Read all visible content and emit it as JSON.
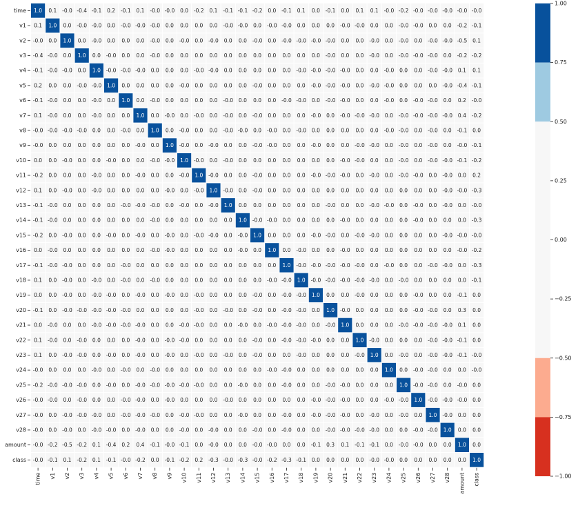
{
  "chart_data": {
    "type": "heatmap",
    "variables": [
      "time",
      "v1",
      "v2",
      "v3",
      "v4",
      "v5",
      "v6",
      "v7",
      "v8",
      "v9",
      "v10",
      "v11",
      "v12",
      "v13",
      "v14",
      "v15",
      "v16",
      "v17",
      "v18",
      "v19",
      "v20",
      "v21",
      "v22",
      "v23",
      "v24",
      "v25",
      "v26",
      "v27",
      "v28",
      "amount",
      "class"
    ],
    "matrix": [
      [
        "1.0",
        "0.1",
        "-0.0",
        "-0.4",
        "-0.1",
        "0.2",
        "-0.1",
        "0.1",
        "-0.0",
        "-0.0",
        "0.0",
        "-0.2",
        "0.1",
        "-0.1",
        "-0.1",
        "-0.2",
        "0.0",
        "-0.1",
        "0.1",
        "0.0",
        "-0.1",
        "0.0",
        "0.1",
        "0.1",
        "-0.0",
        "-0.2",
        "-0.0",
        "-0.0",
        "-0.0",
        "-0.0",
        "-0.0"
      ],
      [
        "0.1",
        "1.0",
        "0.0",
        "-0.0",
        "-0.0",
        "0.0",
        "-0.0",
        "-0.0",
        "-0.0",
        "0.0",
        "0.0",
        "0.0",
        "0.0",
        "-0.0",
        "-0.0",
        "0.0",
        "-0.0",
        "-0.0",
        "0.0",
        "0.0",
        "0.0",
        "-0.0",
        "-0.0",
        "0.0",
        "0.0",
        "-0.0",
        "-0.0",
        "0.0",
        "0.0",
        "-0.2",
        "-0.1"
      ],
      [
        "-0.0",
        "0.0",
        "1.0",
        "0.0",
        "-0.0",
        "0.0",
        "0.0",
        "0.0",
        "-0.0",
        "0.0",
        "-0.0",
        "0.0",
        "-0.0",
        "0.0",
        "0.0",
        "-0.0",
        "0.0",
        "-0.0",
        "-0.0",
        "-0.0",
        "-0.0",
        "0.0",
        "0.0",
        "-0.0",
        "0.0",
        "-0.0",
        "0.0",
        "-0.0",
        "-0.0",
        "-0.5",
        "0.1"
      ],
      [
        "-0.4",
        "-0.0",
        "0.0",
        "1.0",
        "0.0",
        "-0.0",
        "0.0",
        "0.0",
        "-0.0",
        "0.0",
        "0.0",
        "0.0",
        "0.0",
        "0.0",
        "0.0",
        "0.0",
        "0.0",
        "0.0",
        "0.0",
        "0.0",
        "-0.0",
        "0.0",
        "0.0",
        "-0.0",
        "0.0",
        "-0.0",
        "-0.0",
        "-0.0",
        "0.0",
        "-0.2",
        "-0.2"
      ],
      [
        "-0.1",
        "-0.0",
        "-0.0",
        "0.0",
        "1.0",
        "-0.0",
        "-0.0",
        "-0.0",
        "0.0",
        "0.0",
        "0.0",
        "-0.0",
        "-0.0",
        "0.0",
        "0.0",
        "0.0",
        "0.0",
        "0.0",
        "-0.0",
        "-0.0",
        "-0.0",
        "-0.0",
        "0.0",
        "0.0",
        "-0.0",
        "0.0",
        "0.0",
        "-0.0",
        "-0.0",
        "0.1",
        "0.1"
      ],
      [
        "0.2",
        "0.0",
        "0.0",
        "-0.0",
        "-0.0",
        "1.0",
        "0.0",
        "0.0",
        "0.0",
        "0.0",
        "-0.0",
        "0.0",
        "0.0",
        "0.0",
        "0.0",
        "-0.0",
        "0.0",
        "0.0",
        "0.0",
        "-0.0",
        "-0.0",
        "-0.0",
        "0.0",
        "-0.0",
        "-0.0",
        "0.0",
        "0.0",
        "0.0",
        "-0.0",
        "-0.4",
        "-0.1"
      ],
      [
        "-0.1",
        "-0.0",
        "0.0",
        "0.0",
        "-0.0",
        "0.0",
        "1.0",
        "0.0",
        "-0.0",
        "0.0",
        "0.0",
        "0.0",
        "0.0",
        "-0.0",
        "0.0",
        "0.0",
        "0.0",
        "-0.0",
        "-0.0",
        "0.0",
        "-0.0",
        "-0.0",
        "0.0",
        "0.0",
        "-0.0",
        "0.0",
        "-0.0",
        "-0.0",
        "0.0",
        "0.2",
        "-0.0"
      ],
      [
        "0.1",
        "-0.0",
        "0.0",
        "0.0",
        "-0.0",
        "0.0",
        "0.0",
        "1.0",
        "0.0",
        "-0.0",
        "0.0",
        "-0.0",
        "0.0",
        "-0.0",
        "0.0",
        "-0.0",
        "0.0",
        "0.0",
        "0.0",
        "-0.0",
        "0.0",
        "-0.0",
        "-0.0",
        "-0.0",
        "0.0",
        "-0.0",
        "-0.0",
        "-0.0",
        "-0.0",
        "0.4",
        "-0.2"
      ],
      [
        "-0.0",
        "-0.0",
        "-0.0",
        "-0.0",
        "0.0",
        "0.0",
        "-0.0",
        "0.0",
        "1.0",
        "0.0",
        "-0.0",
        "0.0",
        "0.0",
        "-0.0",
        "-0.0",
        "0.0",
        "-0.0",
        "0.0",
        "-0.0",
        "0.0",
        "0.0",
        "0.0",
        "0.0",
        "0.0",
        "-0.0",
        "-0.0",
        "0.0",
        "-0.0",
        "0.0",
        "-0.1",
        "0.0"
      ],
      [
        "-0.0",
        "0.0",
        "0.0",
        "0.0",
        "0.0",
        "0.0",
        "0.0",
        "-0.0",
        "0.0",
        "1.0",
        "-0.0",
        "0.0",
        "-0.0",
        "0.0",
        "0.0",
        "-0.0",
        "-0.0",
        "0.0",
        "0.0",
        "-0.0",
        "0.0",
        "0.0",
        "-0.0",
        "-0.0",
        "0.0",
        "-0.0",
        "0.0",
        "-0.0",
        "0.0",
        "-0.0",
        "-0.1"
      ],
      [
        "0.0",
        "0.0",
        "-0.0",
        "0.0",
        "0.0",
        "-0.0",
        "0.0",
        "0.0",
        "-0.0",
        "-0.0",
        "1.0",
        "-0.0",
        "0.0",
        "-0.0",
        "0.0",
        "0.0",
        "0.0",
        "0.0",
        "0.0",
        "0.0",
        "0.0",
        "-0.0",
        "-0.0",
        "0.0",
        "0.0",
        "-0.0",
        "0.0",
        "-0.0",
        "-0.0",
        "-0.1",
        "-0.2"
      ],
      [
        "-0.2",
        "0.0",
        "0.0",
        "0.0",
        "-0.0",
        "0.0",
        "0.0",
        "-0.0",
        "0.0",
        "0.0",
        "-0.0",
        "1.0",
        "-0.0",
        "0.0",
        "0.0",
        "-0.0",
        "0.0",
        "0.0",
        "0.0",
        "-0.0",
        "-0.0",
        "-0.0",
        "0.0",
        "-0.0",
        "0.0",
        "-0.0",
        "-0.0",
        "0.0",
        "-0.0",
        "0.0",
        "0.2"
      ],
      [
        "0.1",
        "0.0",
        "-0.0",
        "0.0",
        "-0.0",
        "0.0",
        "0.0",
        "0.0",
        "0.0",
        "-0.0",
        "0.0",
        "-0.0",
        "1.0",
        "-0.0",
        "0.0",
        "-0.0",
        "0.0",
        "0.0",
        "0.0",
        "0.0",
        "0.0",
        "0.0",
        "0.0",
        "0.0",
        "0.0",
        "0.0",
        "0.0",
        "0.0",
        "-0.0",
        "-0.0",
        "-0.3"
      ],
      [
        "-0.1",
        "-0.0",
        "0.0",
        "0.0",
        "0.0",
        "0.0",
        "-0.0",
        "-0.0",
        "-0.0",
        "0.0",
        "-0.0",
        "0.0",
        "-0.0",
        "1.0",
        "0.0",
        "0.0",
        "0.0",
        "0.0",
        "0.0",
        "0.0",
        "-0.0",
        "0.0",
        "0.0",
        "-0.0",
        "-0.0",
        "0.0",
        "-0.0",
        "0.0",
        "-0.0",
        "0.0",
        "-0.0"
      ],
      [
        "-0.1",
        "-0.0",
        "0.0",
        "0.0",
        "0.0",
        "0.0",
        "0.0",
        "0.0",
        "-0.0",
        "0.0",
        "0.0",
        "0.0",
        "0.0",
        "0.0",
        "1.0",
        "-0.0",
        "-0.0",
        "0.0",
        "0.0",
        "0.0",
        "0.0",
        "-0.0",
        "0.0",
        "0.0",
        "0.0",
        "0.0",
        "-0.0",
        "0.0",
        "0.0",
        "0.0",
        "-0.3"
      ],
      [
        "-0.2",
        "0.0",
        "-0.0",
        "0.0",
        "0.0",
        "-0.0",
        "0.0",
        "-0.0",
        "0.0",
        "-0.0",
        "0.0",
        "-0.0",
        "-0.0",
        "0.0",
        "-0.0",
        "1.0",
        "0.0",
        "0.0",
        "0.0",
        "-0.0",
        "-0.0",
        "0.0",
        "-0.0",
        "-0.0",
        "0.0",
        "0.0",
        "0.0",
        "0.0",
        "-0.0",
        "-0.0",
        "-0.0"
      ],
      [
        "0.0",
        "-0.0",
        "0.0",
        "0.0",
        "0.0",
        "0.0",
        "0.0",
        "0.0",
        "-0.0",
        "-0.0",
        "0.0",
        "0.0",
        "0.0",
        "0.0",
        "-0.0",
        "0.0",
        "1.0",
        "0.0",
        "-0.0",
        "0.0",
        "0.0",
        "-0.0",
        "0.0",
        "0.0",
        "0.0",
        "0.0",
        "0.0",
        "0.0",
        "0.0",
        "-0.0",
        "-0.2"
      ],
      [
        "-0.1",
        "-0.0",
        "-0.0",
        "0.0",
        "0.0",
        "0.0",
        "-0.0",
        "0.0",
        "0.0",
        "0.0",
        "0.0",
        "0.0",
        "0.0",
        "0.0",
        "0.0",
        "0.0",
        "0.0",
        "1.0",
        "-0.0",
        "-0.0",
        "-0.0",
        "-0.0",
        "-0.0",
        "0.0",
        "-0.0",
        "0.0",
        "0.0",
        "-0.0",
        "-0.0",
        "0.0",
        "-0.3"
      ],
      [
        "0.1",
        "0.0",
        "-0.0",
        "0.0",
        "-0.0",
        "0.0",
        "-0.0",
        "0.0",
        "-0.0",
        "0.0",
        "0.0",
        "0.0",
        "0.0",
        "0.0",
        "0.0",
        "0.0",
        "-0.0",
        "-0.0",
        "1.0",
        "-0.0",
        "-0.0",
        "-0.0",
        "-0.0",
        "-0.0",
        "0.0",
        "-0.0",
        "0.0",
        "0.0",
        "0.0",
        "0.0",
        "-0.1"
      ],
      [
        "0.0",
        "0.0",
        "-0.0",
        "0.0",
        "-0.0",
        "-0.0",
        "0.0",
        "-0.0",
        "0.0",
        "-0.0",
        "0.0",
        "-0.0",
        "0.0",
        "0.0",
        "0.0",
        "-0.0",
        "0.0",
        "-0.0",
        "-0.0",
        "1.0",
        "0.0",
        "0.0",
        "-0.0",
        "0.0",
        "0.0",
        "0.0",
        "-0.0",
        "0.0",
        "0.0",
        "-0.1",
        "0.0"
      ],
      [
        "-0.1",
        "0.0",
        "-0.0",
        "-0.0",
        "-0.0",
        "-0.0",
        "-0.0",
        "0.0",
        "0.0",
        "0.0",
        "0.0",
        "-0.0",
        "0.0",
        "-0.0",
        "0.0",
        "-0.0",
        "0.0",
        "-0.0",
        "-0.0",
        "0.0",
        "1.0",
        "-0.0",
        "0.0",
        "0.0",
        "0.0",
        "0.0",
        "-0.0",
        "-0.0",
        "0.0",
        "0.3",
        "0.0"
      ],
      [
        "0.0",
        "-0.0",
        "0.0",
        "0.0",
        "-0.0",
        "-0.0",
        "-0.0",
        "-0.0",
        "0.0",
        "0.0",
        "-0.0",
        "-0.0",
        "0.0",
        "0.0",
        "-0.0",
        "0.0",
        "-0.0",
        "-0.0",
        "-0.0",
        "0.0",
        "-0.0",
        "1.0",
        "0.0",
        "0.0",
        "0.0",
        "-0.0",
        "-0.0",
        "-0.0",
        "-0.0",
        "0.1",
        "0.0"
      ],
      [
        "0.1",
        "-0.0",
        "0.0",
        "-0.0",
        "0.0",
        "0.0",
        "0.0",
        "-0.0",
        "0.0",
        "-0.0",
        "-0.0",
        "0.0",
        "0.0",
        "0.0",
        "0.0",
        "-0.0",
        "0.0",
        "-0.0",
        "-0.0",
        "-0.0",
        "0.0",
        "0.0",
        "1.0",
        "-0.0",
        "0.0",
        "0.0",
        "0.0",
        "-0.0",
        "-0.0",
        "-0.1",
        "0.0"
      ],
      [
        "0.1",
        "0.0",
        "-0.0",
        "-0.0",
        "0.0",
        "-0.0",
        "0.0",
        "-0.0",
        "0.0",
        "-0.0",
        "0.0",
        "-0.0",
        "0.0",
        "-0.0",
        "0.0",
        "-0.0",
        "0.0",
        "0.0",
        "-0.0",
        "0.0",
        "0.0",
        "0.0",
        "-0.0",
        "1.0",
        "0.0",
        "-0.0",
        "0.0",
        "-0.0",
        "-0.0",
        "-0.1",
        "-0.0"
      ],
      [
        "-0.0",
        "0.0",
        "0.0",
        "0.0",
        "-0.0",
        "0.0",
        "-0.0",
        "0.0",
        "-0.0",
        "0.0",
        "0.0",
        "0.0",
        "0.0",
        "0.0",
        "0.0",
        "0.0",
        "-0.0",
        "-0.0",
        "0.0",
        "0.0",
        "0.0",
        "0.0",
        "0.0",
        "0.0",
        "1.0",
        "0.0",
        "-0.0",
        "-0.0",
        "0.0",
        "0.0",
        "-0.0"
      ],
      [
        "-0.2",
        "-0.0",
        "-0.0",
        "-0.0",
        "0.0",
        "-0.0",
        "0.0",
        "-0.0",
        "-0.0",
        "-0.0",
        "-0.0",
        "-0.0",
        "0.0",
        "0.0",
        "-0.0",
        "0.0",
        "0.0",
        "-0.0",
        "0.0",
        "0.0",
        "-0.0",
        "-0.0",
        "0.0",
        "0.0",
        "0.0",
        "1.0",
        "-0.0",
        "-0.0",
        "0.0",
        "-0.0",
        "0.0"
      ],
      [
        "-0.0",
        "-0.0",
        "0.0",
        "-0.0",
        "0.0",
        "0.0",
        "-0.0",
        "-0.0",
        "0.0",
        "-0.0",
        "0.0",
        "0.0",
        "0.0",
        "-0.0",
        "0.0",
        "0.0",
        "0.0",
        "0.0",
        "0.0",
        "-0.0",
        "-0.0",
        "-0.0",
        "0.0",
        "0.0",
        "-0.0",
        "-0.0",
        "1.0",
        "-0.0",
        "-0.0",
        "-0.0",
        "0.0"
      ],
      [
        "-0.0",
        "0.0",
        "-0.0",
        "-0.0",
        "-0.0",
        "0.0",
        "-0.0",
        "-0.0",
        "-0.0",
        "0.0",
        "-0.0",
        "-0.0",
        "0.0",
        "0.0",
        "-0.0",
        "0.0",
        "0.0",
        "-0.0",
        "0.0",
        "-0.0",
        "-0.0",
        "-0.0",
        "0.0",
        "-0.0",
        "0.0",
        "-0.0",
        "0.0",
        "1.0",
        "-0.0",
        "0.0",
        "0.0"
      ],
      [
        "-0.0",
        "0.0",
        "-0.0",
        "0.0",
        "-0.0",
        "-0.0",
        "0.0",
        "-0.0",
        "0.0",
        "0.0",
        "-0.0",
        "0.0",
        "-0.0",
        "0.0",
        "0.0",
        "-0.0",
        "0.0",
        "-0.0",
        "0.0",
        "0.0",
        "-0.0",
        "-0.0",
        "-0.0",
        "-0.0",
        "0.0",
        "0.0",
        "-0.0",
        "-0.0",
        "1.0",
        "0.0",
        "0.0"
      ],
      [
        "-0.0",
        "-0.2",
        "-0.5",
        "-0.2",
        "0.1",
        "-0.4",
        "0.2",
        "0.4",
        "-0.1",
        "-0.0",
        "-0.1",
        "0.0",
        "-0.0",
        "0.0",
        "0.0",
        "-0.0",
        "-0.0",
        "0.0",
        "0.0",
        "-0.1",
        "0.3",
        "0.1",
        "-0.1",
        "-0.1",
        "0.0",
        "-0.0",
        "-0.0",
        "0.0",
        "0.0",
        "1.0",
        "0.0"
      ],
      [
        "-0.0",
        "-0.1",
        "0.1",
        "-0.2",
        "0.1",
        "-0.1",
        "-0.0",
        "-0.2",
        "0.0",
        "-0.1",
        "-0.2",
        "0.2",
        "-0.3",
        "-0.0",
        "-0.3",
        "-0.0",
        "-0.2",
        "-0.3",
        "-0.1",
        "0.0",
        "0.0",
        "0.0",
        "0.0",
        "-0.0",
        "-0.0",
        "0.0",
        "0.0",
        "0.0",
        "0.0",
        "0.0",
        "1.0"
      ]
    ],
    "colorbar": {
      "ticks": [
        "1.00",
        "0.75",
        "0.50",
        "0.25",
        "0.00",
        "−0.25",
        "−0.50",
        "−0.75",
        "−1.00"
      ],
      "range": [
        -1.0,
        1.0
      ],
      "bands": [
        {
          "from": 0.75,
          "to": 1.0,
          "color": "#08519c"
        },
        {
          "from": 0.5,
          "to": 0.75,
          "color": "#9ecae1"
        },
        {
          "from": -0.5,
          "to": 0.5,
          "color": "#f7f7f7"
        },
        {
          "from": -0.75,
          "to": -0.5,
          "color": "#fcab8f"
        },
        {
          "from": -1.0,
          "to": -0.75,
          "color": "#d7301f"
        }
      ]
    },
    "title": "",
    "xlabel": "",
    "ylabel": ""
  }
}
